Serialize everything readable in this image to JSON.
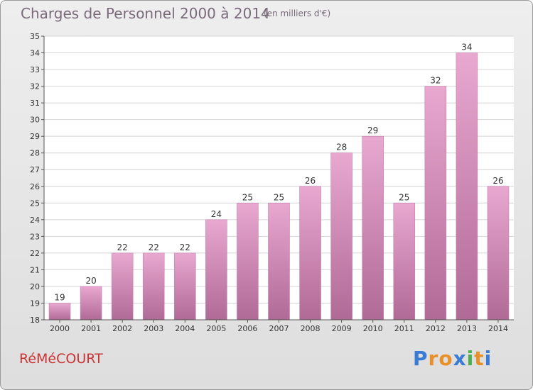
{
  "chart_data": {
    "type": "bar",
    "title": "Charges de Personnel 2000 à 2014",
    "subtitle": "(en milliers d'€)",
    "categories": [
      "2000",
      "2001",
      "2002",
      "2003",
      "2004",
      "2005",
      "2006",
      "2007",
      "2008",
      "2009",
      "2010",
      "2011",
      "2012",
      "2013",
      "2014"
    ],
    "values": [
      19,
      20,
      22,
      22,
      22,
      24,
      25,
      25,
      26,
      28,
      29,
      25,
      32,
      34,
      26
    ],
    "ylim": [
      18,
      35
    ],
    "yticks": [
      18,
      19,
      20,
      21,
      22,
      23,
      24,
      25,
      26,
      27,
      28,
      29,
      30,
      31,
      32,
      33,
      34,
      35
    ],
    "grid": true,
    "colors": {
      "bar_light": "#e8a8d0",
      "bar_dark": "#b06a96",
      "axis": "#555555",
      "grid": "#d4d4d4"
    }
  },
  "commune": "RéMéCOURT",
  "logo": {
    "letters": [
      "P",
      "r",
      "o",
      "x",
      "i",
      "t",
      "i"
    ],
    "colors": [
      "#3a7bd5",
      "#e8902a",
      "#e8902a",
      "#3a7bd5",
      "#4caf50",
      "#e8902a",
      "#3a7bd5"
    ]
  }
}
